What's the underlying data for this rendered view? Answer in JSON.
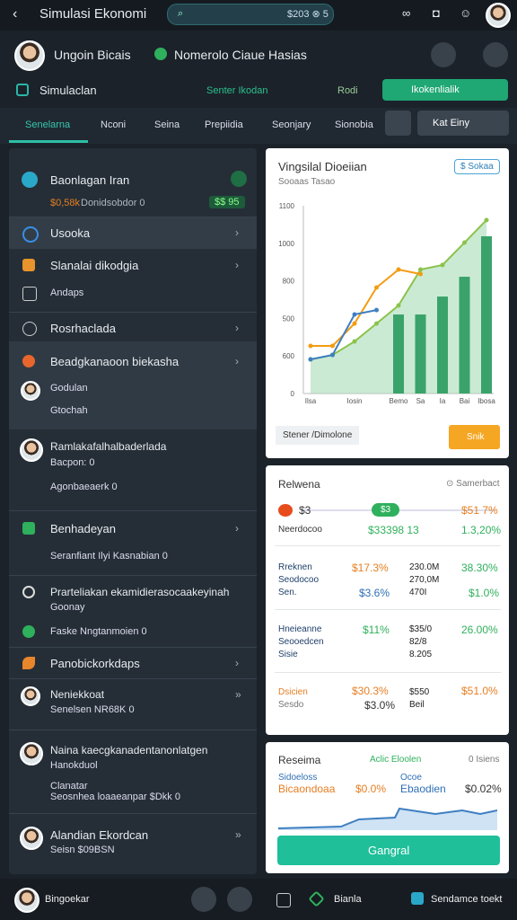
{
  "topbar": {
    "title": "Simulasi Ekonomi",
    "search": "$203 ⊗ 5"
  },
  "profile": {
    "name": "Ungoin Bicais",
    "status": "Nomerolo Ciaue Hasias"
  },
  "subbar": {
    "left": "Simulaclan",
    "center": "Senter Ikodan",
    "right": "Rodi",
    "button": "Ikokenlialik"
  },
  "tabs": {
    "items": [
      "Senelarna",
      "Nconi",
      "Seina",
      "Prepiidia",
      "Seonjary",
      "Sionobia"
    ],
    "dropdown": "Kat Einy"
  },
  "list": {
    "items": [
      {
        "title": "Baonlagan Iran",
        "amount": "$0,58k",
        "sub": "Donidsobdor 0",
        "pill": "$$ 95"
      },
      {
        "title": "Usooka"
      },
      {
        "title": "Slanalai dikodgia",
        "sub": "Andaps"
      },
      {
        "title": "Rosrhaclada"
      },
      {
        "title": "Beadgkanaoon biekasha",
        "sub": "Godulan",
        "sub2": "Gtochah"
      },
      {
        "title": "Ramlakafalhalbaderlada",
        "sub": "Bacpon: 0",
        "sub2": "Agonbaeaerk 0"
      },
      {
        "title": "Benhadeyan",
        "sub": "Seranfiant Ilyi Kasnabian 0"
      },
      {
        "title": "Prarteliakan ekamidierasocaakeyinah",
        "sub": "Goonay"
      },
      {
        "title": "Faske Nngtanmoien 0"
      },
      {
        "title": "Panobickorkdaps"
      },
      {
        "title": "Neniekkoat",
        "sub": "Senelsen NR68K 0"
      },
      {
        "title": "Naina kaecgkanadentanonlatgen",
        "sub": "Hanokduol",
        "sub2": "Clanatar",
        "sub3": "Seosnhea loaaeanpar $Dkk 0"
      },
      {
        "title": "Alandian Ekordcan",
        "sub": "Seisn $09BSN"
      }
    ]
  },
  "chart": {
    "title": "Vingsilal Dioeiian",
    "subtitle": "Sooaas Tasao",
    "button": "$ Sokaa",
    "ylabels": [
      "1100",
      "1000",
      "800",
      "500",
      "600",
      "0"
    ],
    "categories": [
      "Ilsa",
      null,
      "Iosin",
      null,
      "Bemo",
      "Sa",
      "Ia",
      "Bai",
      "Ibosa"
    ],
    "ylim": [
      0,
      1100
    ],
    "series": [
      {
        "color": "#8bc34a",
        "values": [
          200,
          226,
          305,
          410,
          516,
          726,
          753,
          884,
          1016
        ]
      },
      {
        "color": "#f39c12",
        "values": [
          279,
          279,
          410,
          621,
          726,
          700,
          null,
          null,
          null
        ]
      },
      {
        "color": "#3f7fc1",
        "values": [
          200,
          226,
          463,
          489,
          null,
          null,
          null,
          null,
          null
        ]
      }
    ],
    "bars": {
      "color": "#3aa36a",
      "values": [
        null,
        null,
        null,
        null,
        463,
        463,
        568,
        684,
        921
      ]
    },
    "legend": "Stener /Dimolone",
    "action": "Snik"
  },
  "table": {
    "title": "Relwena",
    "link": "⊙ Samerbact",
    "top": {
      "a": "$3",
      "b": "$3",
      "c": "$51 7%"
    },
    "row0": [
      "Neerdocoo",
      "$33398 13",
      "1.3,20%"
    ],
    "rows": [
      {
        "labels": [
          "Rreknen",
          "Seodocoo",
          "Sen."
        ],
        "c1": [
          "$17.3%",
          "$3.6%"
        ],
        "c2": [
          "230.0M",
          "270,0M",
          "470I"
        ],
        "c3": [
          "38.30%",
          "$1.0%"
        ]
      },
      {
        "labels": [
          "Hneieanne",
          "Seooedcen",
          "Sisie"
        ],
        "c1": [
          "$11%"
        ],
        "c2": [
          "$35/0",
          "82/8",
          "8.205"
        ],
        "c3": [
          "26.00%"
        ]
      },
      {
        "labels": [
          "Dsicien",
          "Sesdo"
        ],
        "c1": [
          "$30.3%",
          "$3.0%"
        ],
        "c2": [
          "$550",
          "Beil"
        ],
        "c3": [
          "$51.0%"
        ]
      }
    ]
  },
  "summary": {
    "title": "Reseima",
    "tag": "Aclic Eloolen",
    "count": "0 Isiens",
    "a": [
      "Sidoeloss",
      "Bicaondoaa"
    ],
    "b": "$0.0%",
    "c": [
      "Ocoe",
      "Ebaodien"
    ],
    "d": "$0.02%",
    "button": "Gangral"
  },
  "bottom": {
    "user": "Bingoekar",
    "mid": "Bianla",
    "right": "Sendamce toekt"
  }
}
